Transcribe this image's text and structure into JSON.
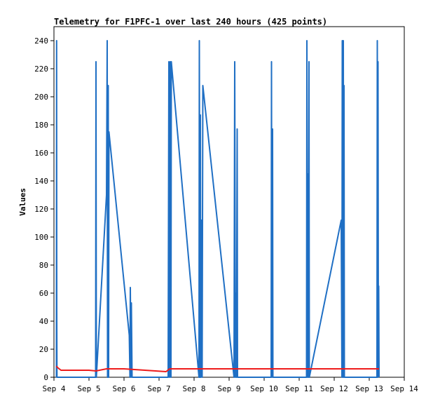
{
  "chart_data": {
    "type": "line",
    "title": "Telemetry for F1PFC-1 over last 240 hours (425 points)",
    "xlabel": "",
    "ylabel": "Values",
    "xlim": [
      4.0,
      14.0
    ],
    "ylim": [
      0,
      250
    ],
    "x_ticks": [
      {
        "value": 4,
        "label": "Sep 4"
      },
      {
        "value": 5,
        "label": "Sep 5"
      },
      {
        "value": 6,
        "label": "Sep 6"
      },
      {
        "value": 7,
        "label": "Sep 7"
      },
      {
        "value": 8,
        "label": "Sep 8"
      },
      {
        "value": 9,
        "label": "Sep 9"
      },
      {
        "value": 10,
        "label": "Sep 10"
      },
      {
        "value": 11,
        "label": "Sep 11"
      },
      {
        "value": 12,
        "label": "Sep 12"
      },
      {
        "value": 13,
        "label": "Sep 13"
      },
      {
        "value": 14,
        "label": "Sep 14"
      }
    ],
    "y_ticks": [
      0,
      20,
      40,
      60,
      80,
      100,
      120,
      140,
      160,
      180,
      200,
      220,
      240
    ],
    "grid": false,
    "legend": "none",
    "series": [
      {
        "color": "#1f6fc4",
        "x": [
          4.07,
          4.075,
          4.08,
          4.085,
          4.09,
          5.19,
          5.2,
          5.21,
          5.5,
          5.52,
          5.53,
          5.55,
          5.56,
          5.57,
          6.15,
          6.17,
          6.18,
          6.2,
          6.21,
          6.23,
          7.26,
          7.28,
          7.3,
          7.32,
          7.34,
          7.35,
          8.14,
          8.15,
          8.17,
          8.18,
          8.19,
          8.21,
          8.23,
          8.25,
          9.14,
          9.16,
          9.18,
          9.2,
          9.21,
          9.23,
          9.24,
          10.2,
          10.21,
          10.22,
          10.24,
          10.25,
          11.21,
          11.22,
          11.24,
          11.25,
          11.26,
          11.28,
          11.29,
          12.2,
          12.22,
          12.23,
          12.25,
          12.26,
          12.27,
          12.28,
          12.29,
          12.3,
          13.22,
          13.23,
          13.24,
          13.25,
          13.26,
          13.27,
          13.28
        ],
        "y": [
          0,
          240,
          48,
          0,
          0,
          0,
          225,
          0,
          130,
          240,
          0,
          208,
          0,
          175,
          30,
          0,
          64,
          0,
          53,
          0,
          0,
          225,
          0,
          225,
          0,
          225,
          0,
          240,
          0,
          187,
          0,
          112,
          0,
          208,
          0,
          225,
          0,
          60,
          0,
          177,
          0,
          0,
          225,
          0,
          177,
          0,
          0,
          240,
          0,
          145,
          0,
          225,
          0,
          112,
          0,
          240,
          0,
          240,
          0,
          208,
          0,
          0,
          0,
          240,
          0,
          225,
          31,
          65,
          0
        ]
      },
      {
        "color": "#ee1c1c",
        "x": [
          4.07,
          4.1,
          4.2,
          5.0,
          5.2,
          5.5,
          6.0,
          6.3,
          7.2,
          7.3,
          8.0,
          9.0,
          10.0,
          11.0,
          12.0,
          13.0,
          13.28
        ],
        "y": [
          8,
          7,
          5,
          5,
          4.5,
          6,
          6,
          5.5,
          4,
          6,
          6,
          6,
          6,
          6,
          6,
          6,
          6
        ]
      }
    ]
  }
}
